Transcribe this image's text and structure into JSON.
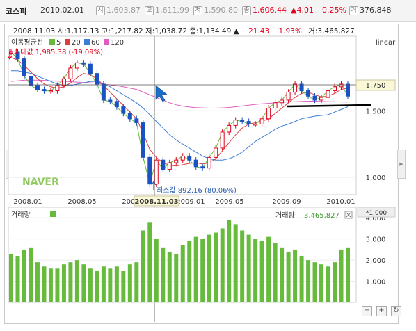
{
  "header": {
    "name": "코스피",
    "date": "2010.02.01",
    "open_icon": "시",
    "open": "1,603.87",
    "high_icon": "고",
    "high": "1,611.99",
    "low_icon": "저",
    "low": "1,590.80",
    "close_icon": "종",
    "close": "1,606.44",
    "change": "▲4.01",
    "change_pct": "0.25%",
    "volume_icon": "거",
    "volume": "376,848"
  },
  "crosshair_info": "2008.11.03  시:1,117.13  고:1,217.82  저:1,038.72  종:1,134.49 ▲",
  "crosshair_change": "21.43",
  "crosshair_pct": "1.93%",
  "crosshair_volume": "거:3,465,827",
  "price_panel": {
    "scale_label": "linear",
    "ma_title": "이동평균선",
    "ma_legend": [
      {
        "label": "5",
        "color": "#66bb3c"
      },
      {
        "label": "20",
        "color": "#e23b3b"
      },
      {
        "label": "60",
        "color": "#3d7fd8"
      },
      {
        "label": "120",
        "color": "#e05cc0"
      }
    ],
    "max_label": "최대값 1,985.38 (-19.09%)",
    "min_label": "최소값 892.16 (80.06%)",
    "cursor_value": "1,750",
    "y_ticks": [
      "1,500",
      "1,000"
    ],
    "watermark": "NAVER"
  },
  "x_axis": {
    "labels": [
      "2008.01",
      "2008.05",
      "2008.09",
      "2009.01",
      "2009.05",
      "2009.09",
      "2010.01"
    ],
    "cursor_label": "2008.11.03"
  },
  "volume_panel": {
    "title": "거래량",
    "legend_label": "거래량",
    "legend_value": "3,465,827",
    "unit": "*1,000",
    "y_ticks": [
      "4,000",
      "3,000",
      "2,000",
      "1,000"
    ]
  },
  "chart_data": {
    "type": "candlestick",
    "x": [
      "2007.11",
      "2007.12",
      "2008.01",
      "2008.01",
      "2008.02",
      "2008.02",
      "2008.03",
      "2008.03",
      "2008.04",
      "2008.04",
      "2008.05",
      "2008.05",
      "2008.06",
      "2008.06",
      "2008.07",
      "2008.07",
      "2008.08",
      "2008.08",
      "2008.09",
      "2008.09",
      "2008.10",
      "2008.10",
      "2008.11",
      "2008.11",
      "2008.12",
      "2008.12",
      "2009.01",
      "2009.01",
      "2009.02",
      "2009.02",
      "2009.03",
      "2009.03",
      "2009.04",
      "2009.04",
      "2009.05",
      "2009.05",
      "2009.06",
      "2009.06",
      "2009.07",
      "2009.07",
      "2009.08",
      "2009.08",
      "2009.09",
      "2009.09",
      "2009.10",
      "2009.10",
      "2009.11",
      "2009.11",
      "2009.12",
      "2009.12",
      "2010.01",
      "2010.01"
    ],
    "close": [
      1940,
      1890,
      1760,
      1690,
      1660,
      1650,
      1650,
      1690,
      1740,
      1820,
      1860,
      1850,
      1780,
      1700,
      1580,
      1570,
      1530,
      1480,
      1440,
      1410,
      1150,
      950,
      1130,
      1060,
      1110,
      1130,
      1160,
      1130,
      1080,
      1070,
      1150,
      1220,
      1340,
      1390,
      1430,
      1420,
      1400,
      1400,
      1440,
      1520,
      1560,
      1580,
      1640,
      1700,
      1650,
      1610,
      1580,
      1600,
      1650,
      1680,
      1700,
      1610
    ],
    "volume": [
      2300,
      2200,
      2500,
      2600,
      1900,
      1700,
      1600,
      1600,
      1800,
      1900,
      2000,
      1800,
      1600,
      1500,
      1700,
      1600,
      1700,
      1500,
      1800,
      1900,
      3400,
      3800,
      3000,
      2600,
      2400,
      2300,
      2700,
      2900,
      3100,
      3000,
      3200,
      3300,
      3500,
      3900,
      3700,
      3400,
      3200,
      3000,
      2900,
      3100,
      2800,
      2600,
      2400,
      2500,
      2200,
      2000,
      1900,
      1800,
      1700,
      1900,
      2500,
      2600
    ],
    "ma20": [
      1900,
      1880,
      1840,
      1790,
      1740,
      1700,
      1680,
      1670,
      1680,
      1710,
      1750,
      1780,
      1770,
      1740,
      1690,
      1640,
      1590,
      1540,
      1490,
      1440,
      1330,
      1210,
      1150,
      1110,
      1090,
      1085,
      1095,
      1105,
      1110,
      1100,
      1110,
      1140,
      1200,
      1260,
      1320,
      1370,
      1400,
      1410,
      1420,
      1440,
      1480,
      1520,
      1560,
      1600,
      1630,
      1640,
      1620,
      1605,
      1610,
      1630,
      1660,
      1670
    ],
    "ma60": [
      1800,
      1800,
      1790,
      1780,
      1760,
      1740,
      1720,
      1700,
      1690,
      1690,
      1700,
      1710,
      1720,
      1720,
      1700,
      1680,
      1650,
      1620,
      1590,
      1560,
      1520,
      1470,
      1420,
      1370,
      1320,
      1280,
      1250,
      1220,
      1190,
      1160,
      1140,
      1130,
      1130,
      1140,
      1160,
      1190,
      1230,
      1270,
      1300,
      1330,
      1360,
      1385,
      1400,
      1420,
      1440,
      1450,
      1460,
      1465,
      1470,
      1490,
      1510,
      1530
    ],
    "ma120": [
      1720,
      1725,
      1730,
      1730,
      1730,
      1728,
      1725,
      1722,
      1720,
      1718,
      1715,
      1712,
      1710,
      1706,
      1700,
      1694,
      1688,
      1680,
      1670,
      1660,
      1640,
      1620,
      1600,
      1580,
      1560,
      1545,
      1535,
      1528,
      1524,
      1522,
      1520,
      1520,
      1522,
      1525,
      1530,
      1536,
      1542,
      1548,
      1552,
      1556,
      1560,
      1564,
      1566,
      1568,
      1570,
      1572,
      1572,
      1570,
      1568,
      1568,
      1566,
      1565
    ],
    "y_ticks": [
      1000,
      1500
    ],
    "annotations": [
      "최대값 1,985.38 (-19.09%)",
      "최소값 892.16 (80.06%)"
    ],
    "ylim": [
      870,
      2060
    ],
    "volume_ylim": [
      0,
      4500
    ]
  }
}
